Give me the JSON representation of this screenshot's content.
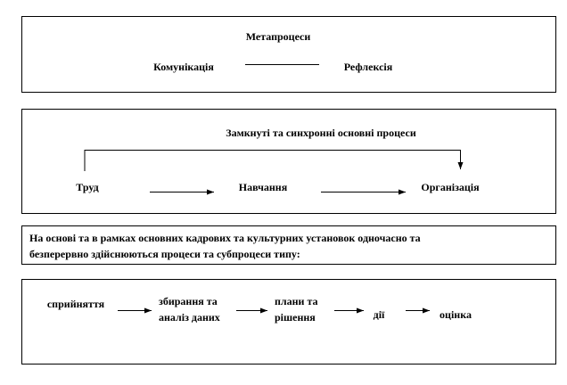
{
  "meta": {
    "title": "Метапроцеси",
    "left": "Комунікація",
    "right": "Рефлексія"
  },
  "core": {
    "title": "Замкнуті та синхронні основні процеси",
    "steps": [
      "Труд",
      "Навчання",
      "Організація"
    ]
  },
  "description": {
    "lines": [
      "На основі та в рамках основних кадрових та культурних установок одночасно та",
      "безперервно здійснюються процеси та субпроцеси типу:"
    ]
  },
  "subprocesses": {
    "steps": [
      {
        "lines": [
          "сприйняття"
        ]
      },
      {
        "lines": [
          "збирання та",
          "аналіз даних"
        ]
      },
      {
        "lines": [
          "плани та",
          "рішення"
        ]
      },
      {
        "lines": [
          "дії"
        ]
      },
      {
        "lines": [
          "оцінка"
        ]
      }
    ]
  }
}
